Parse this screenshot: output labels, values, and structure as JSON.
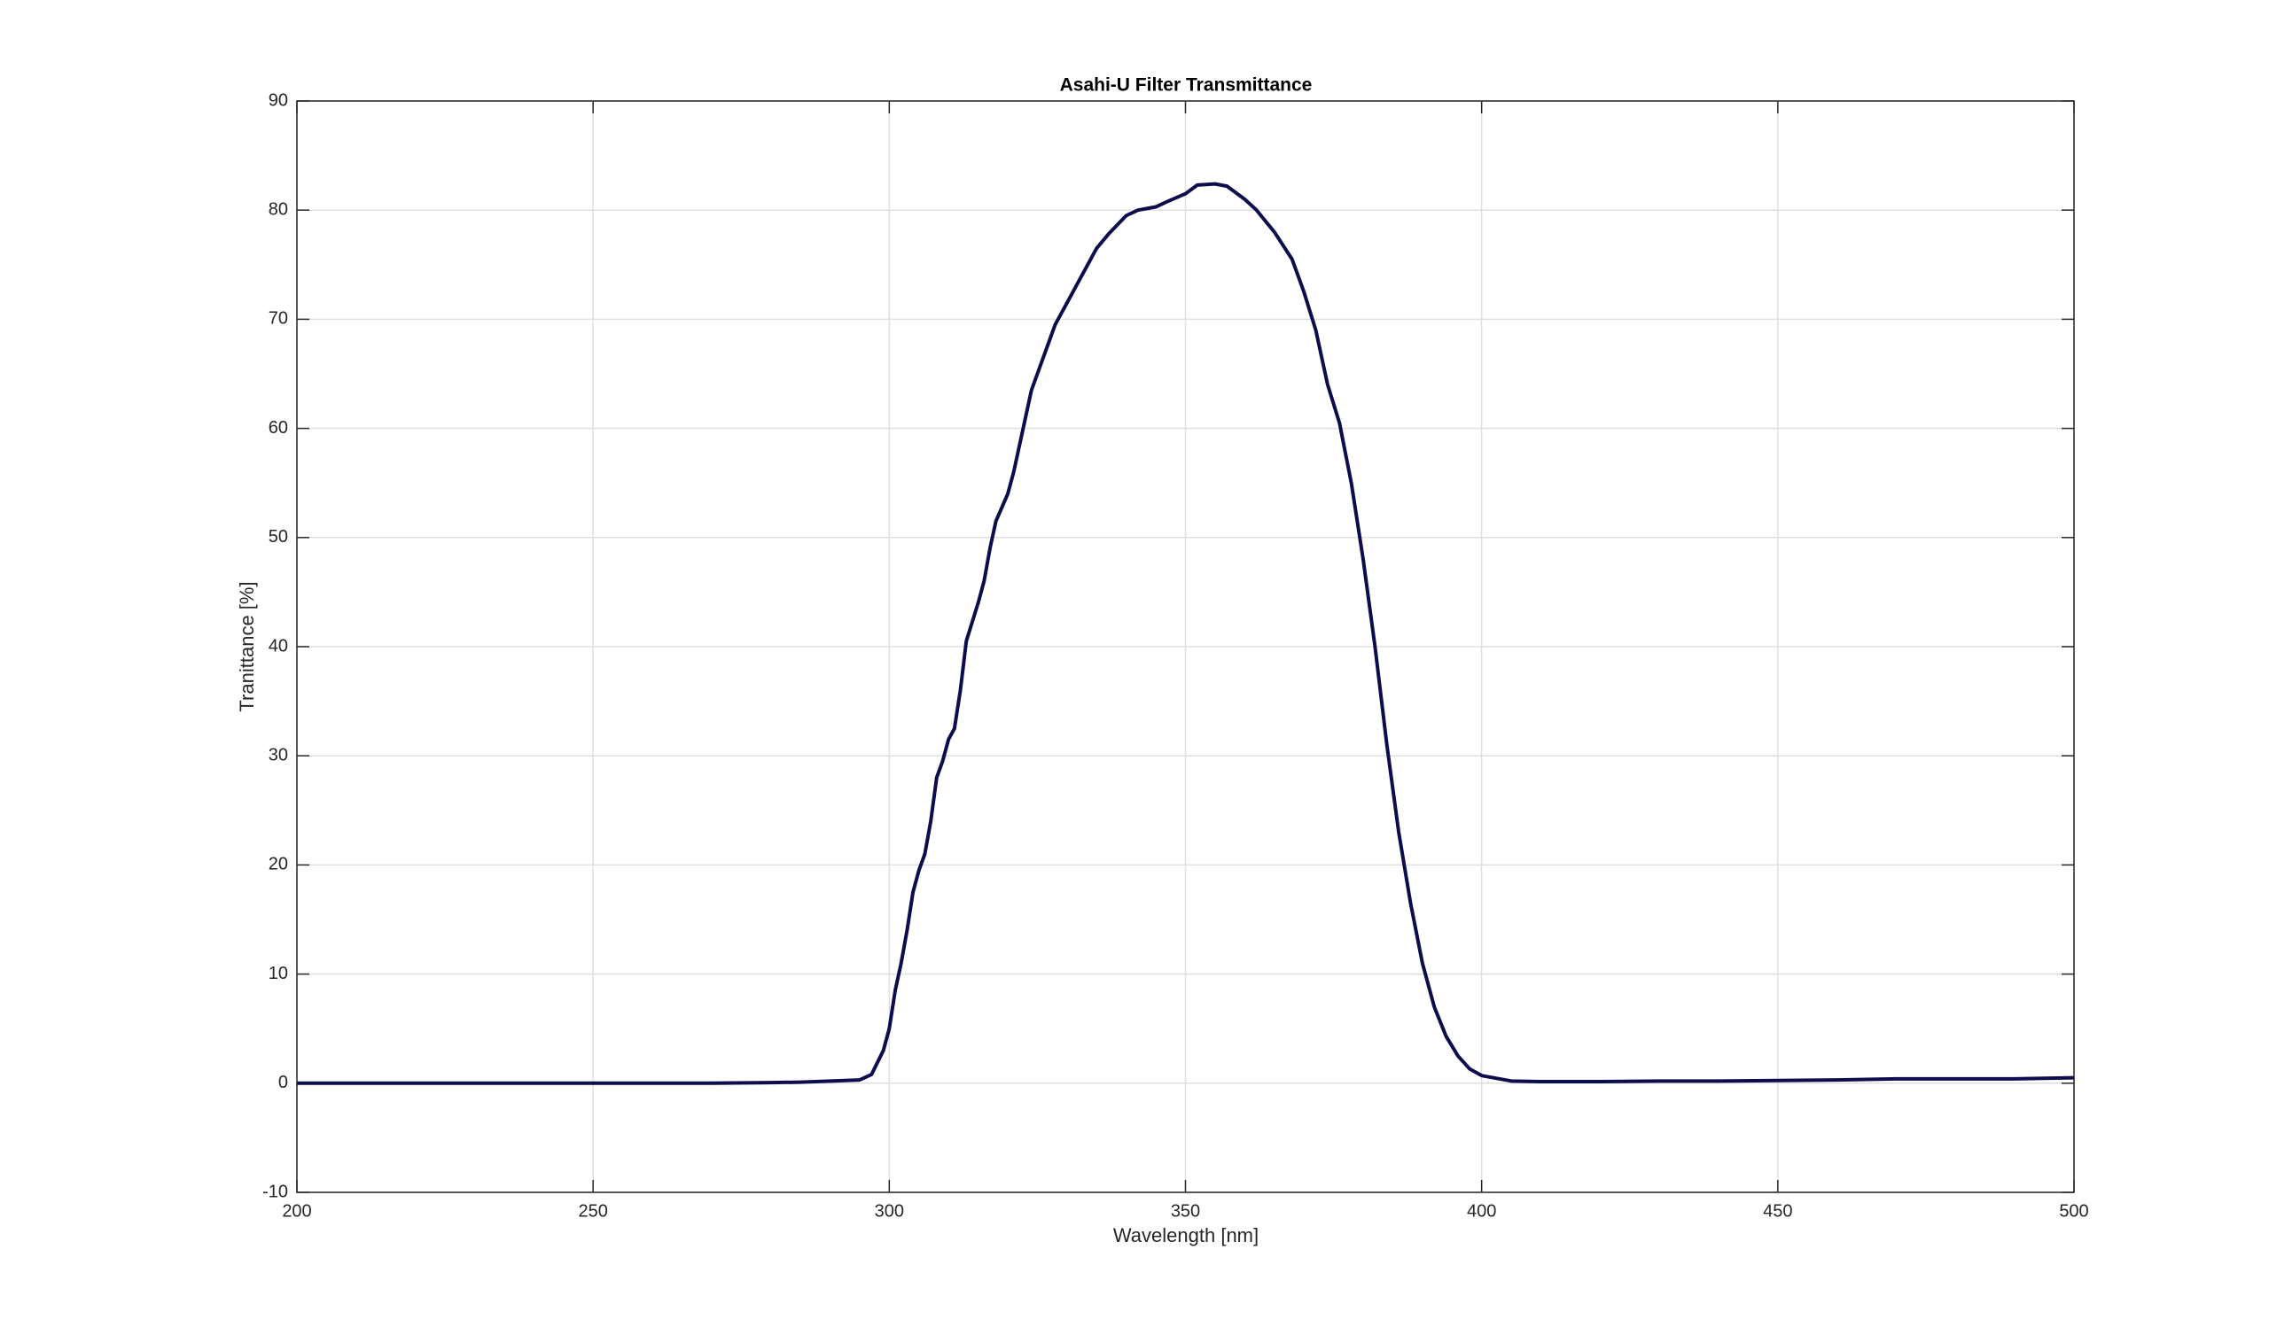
{
  "chart_data": {
    "type": "line",
    "title": "Asahi-U Filter Transmittance",
    "xlabel": "Wavelength [nm]",
    "ylabel": "Tranittance [%]",
    "x": [
      200,
      210,
      220,
      230,
      240,
      250,
      260,
      270,
      280,
      285,
      290,
      295,
      297,
      299,
      300,
      301,
      302,
      303,
      304,
      305,
      306,
      307,
      308,
      309,
      310,
      311,
      312,
      313,
      315,
      316,
      317,
      318,
      320,
      321,
      322,
      323,
      324,
      325,
      327,
      328,
      330,
      333,
      335,
      337,
      340,
      342,
      345,
      347,
      350,
      352,
      355,
      357,
      360,
      362,
      365,
      368,
      370,
      372,
      374,
      376,
      378,
      380,
      382,
      384,
      386,
      388,
      390,
      392,
      394,
      396,
      398,
      400,
      405,
      410,
      420,
      430,
      440,
      450,
      460,
      470,
      480,
      490,
      500
    ],
    "series": [
      {
        "name": "Transmittance",
        "color": "#0d0d4d",
        "values": [
          0,
          0,
          0,
          0,
          0,
          0,
          0,
          0,
          0.05,
          0.1,
          0.2,
          0.3,
          0.8,
          3,
          5,
          8.5,
          11,
          14,
          17.5,
          19.5,
          21,
          24,
          28,
          29.5,
          31.5,
          32.5,
          36,
          40.5,
          44,
          46,
          49,
          51.5,
          54,
          56,
          58.5,
          61,
          63.5,
          65,
          68,
          69.5,
          71.5,
          74.5,
          76.5,
          77.8,
          79.5,
          80,
          80.3,
          80.8,
          81.5,
          82.3,
          82.4,
          82.2,
          81,
          80,
          78,
          75.5,
          72.5,
          69,
          64,
          60.5,
          55,
          48,
          40,
          31,
          23,
          16.5,
          11,
          7,
          4.3,
          2.5,
          1.3,
          0.7,
          0.2,
          0.15,
          0.15,
          0.2,
          0.2,
          0.25,
          0.3,
          0.4,
          0.4,
          0.4,
          0.5
        ]
      }
    ],
    "xlim": [
      200,
      500
    ],
    "xticks": [
      200,
      250,
      300,
      350,
      400,
      450,
      500
    ],
    "ylim": [
      -10,
      90
    ],
    "yticks": [
      -10,
      0,
      10,
      20,
      30,
      40,
      50,
      60,
      70,
      80,
      90
    ],
    "grid": true
  }
}
